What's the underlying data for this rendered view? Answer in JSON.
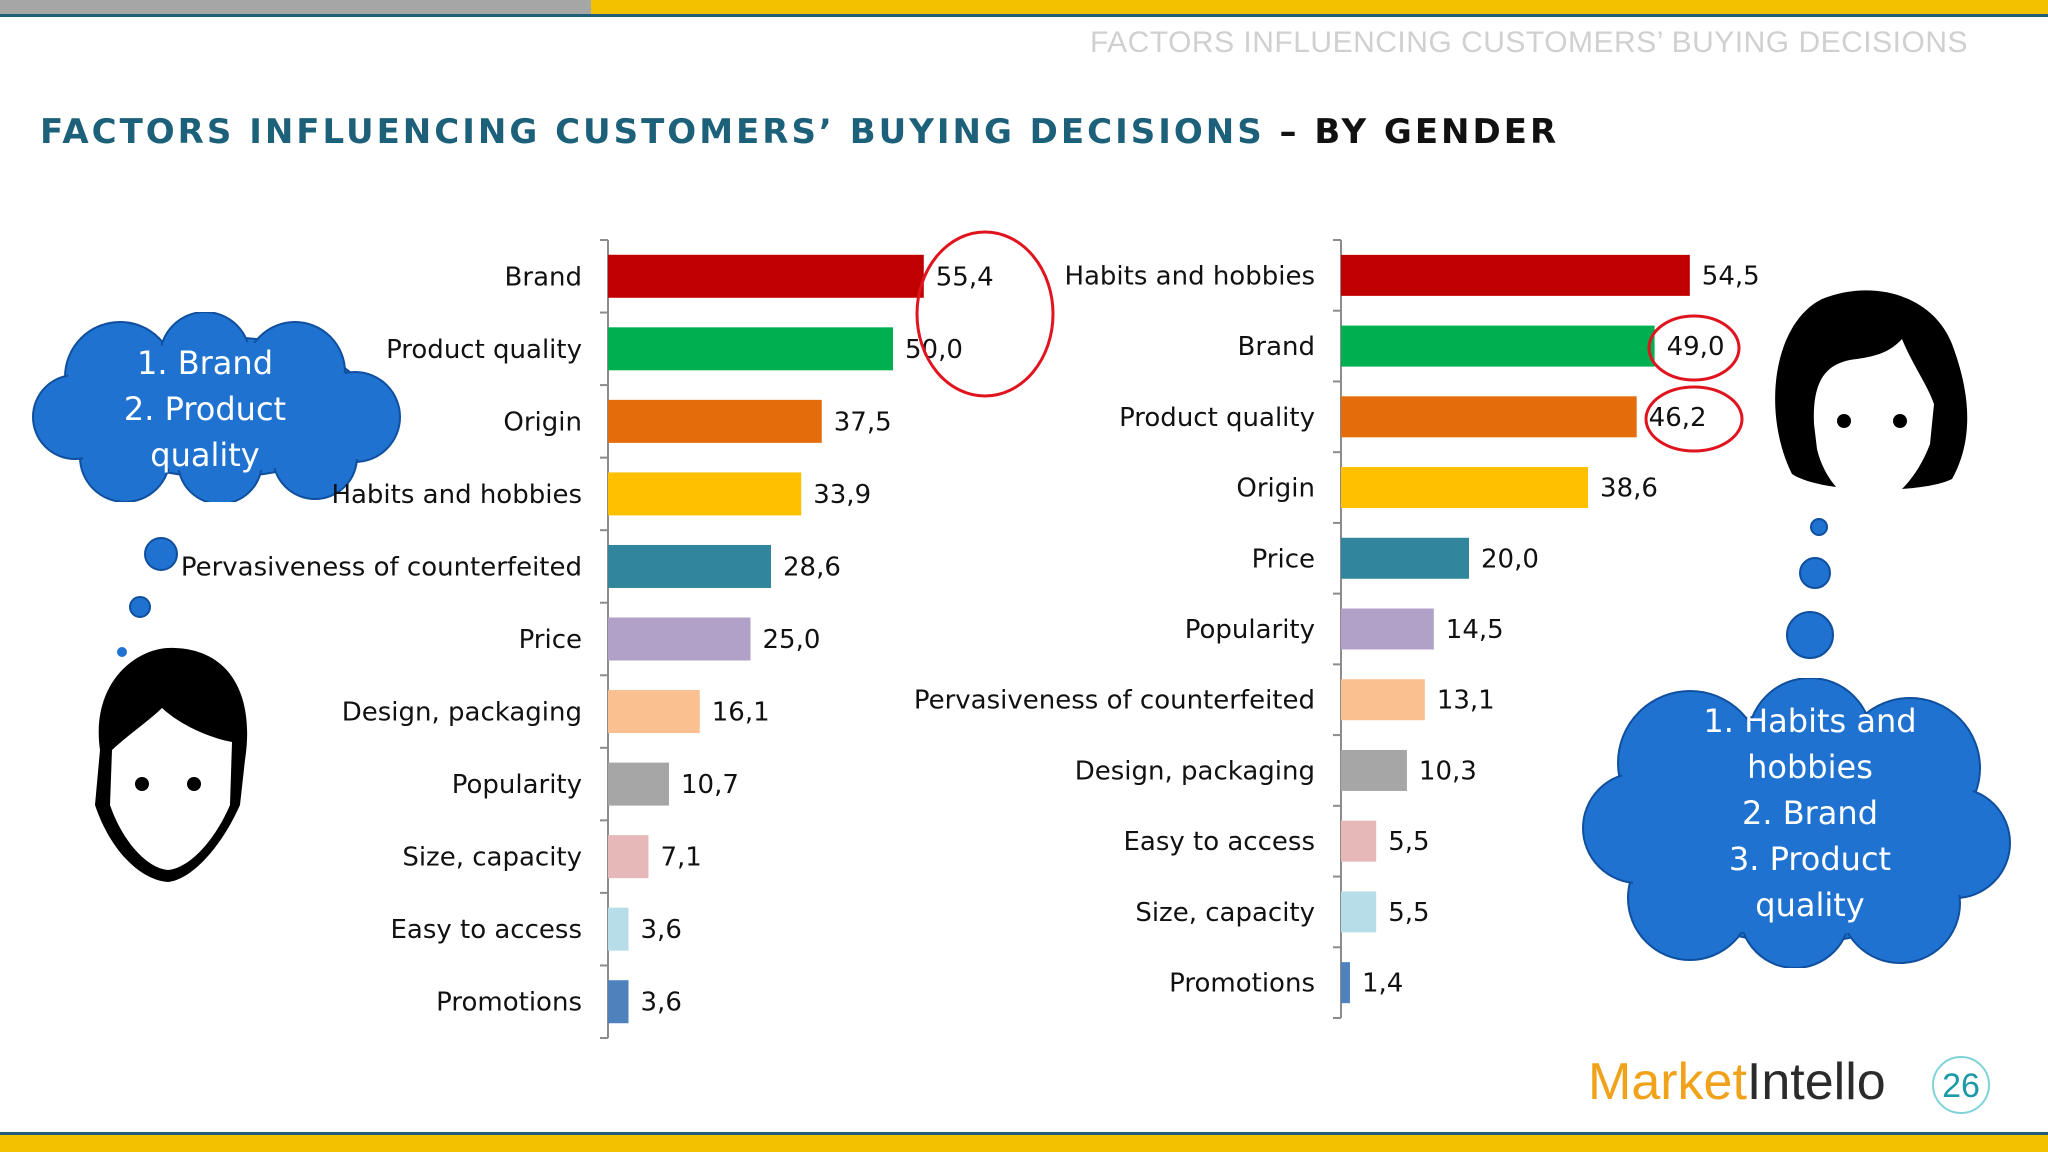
{
  "header": {
    "running_title": "FACTORS INFLUENCING CUSTOMERS’ BUYING DECISIONS"
  },
  "title": {
    "main": "FACTORS INFLUENCING CUSTOMERS’ BUYING DECISIONS",
    "suffix": " – BY GENDER"
  },
  "chart_data": [
    {
      "type": "bar",
      "orientation": "horizontal",
      "categories": [
        "Brand",
        "Product quality",
        "Origin",
        "Habits and hobbies",
        "Pervasiveness of counterfeited",
        "Price",
        "Design, packaging",
        "Popularity",
        "Size, capacity",
        "Easy to access",
        "Promotions"
      ],
      "values": [
        55.4,
        50.0,
        37.5,
        33.9,
        28.6,
        25.0,
        16.1,
        10.7,
        7.1,
        3.6,
        3.6
      ],
      "value_labels": [
        "55,4",
        "50,0",
        "37,5",
        "33,9",
        "28,6",
        "25,0",
        "16,1",
        "10,7",
        "7,1",
        "3,6",
        "3,6"
      ],
      "colors": [
        "#c00000",
        "#00b050",
        "#e46c0a",
        "#ffc000",
        "#31859c",
        "#b1a0c7",
        "#fac090",
        "#a6a6a6",
        "#e6b9b8",
        "#b7dee8",
        "#4f81bd"
      ],
      "highlighted": [
        0,
        1
      ],
      "xlim": [
        0,
        60
      ]
    },
    {
      "type": "bar",
      "orientation": "horizontal",
      "categories": [
        "Habits and hobbies",
        "Brand",
        "Product quality",
        "Origin",
        "Price",
        "Popularity",
        "Pervasiveness of counterfeited",
        "Design, packaging",
        "Easy to access",
        "Size, capacity",
        "Promotions"
      ],
      "values": [
        54.5,
        49.0,
        46.2,
        38.6,
        20.0,
        14.5,
        13.1,
        10.3,
        5.5,
        5.5,
        1.4
      ],
      "value_labels": [
        "54,5",
        "49,0",
        "46,2",
        "38,6",
        "20,0",
        "14,5",
        "13,1",
        "10,3",
        "5,5",
        "5,5",
        "1,4"
      ],
      "colors": [
        "#c00000",
        "#00b050",
        "#e46c0a",
        "#ffc000",
        "#31859c",
        "#b1a0c7",
        "#fac090",
        "#a6a6a6",
        "#e6b9b8",
        "#b7dee8",
        "#4f81bd"
      ],
      "highlighted": [
        1,
        2
      ],
      "xlim": [
        0,
        60
      ]
    }
  ],
  "thought_male": {
    "lines": [
      "1. Brand",
      "2. Product",
      "quality"
    ]
  },
  "thought_female": {
    "lines": [
      "1.   Habits and",
      "hobbies",
      "2.   Brand",
      "3. Product",
      "quality"
    ]
  },
  "footer": {
    "logo_part1": "Market",
    "logo_part2": "Intello",
    "page_number": "26"
  }
}
